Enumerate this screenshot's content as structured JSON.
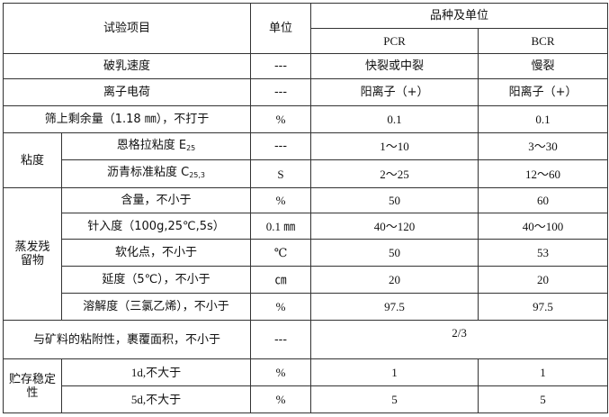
{
  "header": {
    "item": "试验项目",
    "unit": "单位",
    "variety": "品种及单位",
    "pcr": "PCR",
    "bcr": "BCR"
  },
  "rows": [
    {
      "item": "破乳速度",
      "unit": "---",
      "pcr": "快裂或中裂",
      "bcr": "慢裂"
    },
    {
      "item": "离子电荷",
      "unit": "---",
      "pcr": "阳离子（+）",
      "bcr": "阳离子（+）"
    },
    {
      "item": "筛上剩余量（1.18 ㎜），不打于",
      "unit": "%",
      "pcr": "0.1",
      "bcr": "0.1"
    }
  ],
  "viscosity": {
    "group": "粘度",
    "rows": [
      {
        "item": "恩格拉粘度 E",
        "sub": "25",
        "unit": "---",
        "pcr": "1～10",
        "bcr": "3～30"
      },
      {
        "item": "沥青标准粘度 C",
        "sub": "25,3",
        "unit": "S",
        "pcr": "2～25",
        "bcr": "12～60"
      }
    ]
  },
  "residue": {
    "group": "蒸发残留物",
    "rows": [
      {
        "item": "含量，不小于",
        "unit": "%",
        "pcr": "50",
        "bcr": "60"
      },
      {
        "item": "针入度（100g,25℃,5s）",
        "unit": "0.1 ㎜",
        "pcr": "40～120",
        "bcr": "40～100"
      },
      {
        "item": "软化点，不小于",
        "unit": "℃",
        "pcr": "50",
        "bcr": "53"
      },
      {
        "item": "延度（5℃），不小于",
        "unit": "㎝",
        "pcr": "20",
        "bcr": "20"
      },
      {
        "item": "溶解度（三氯乙烯），不小于",
        "unit": "%",
        "pcr": "97.5",
        "bcr": "97.5"
      }
    ]
  },
  "adhesion": {
    "item": "与矿料的粘附性，裹覆面积，不小于",
    "unit": "---",
    "value": "2/3"
  },
  "storage": {
    "group": "贮存稳定性",
    "rows": [
      {
        "item": "1d,不大于",
        "unit": "%",
        "pcr": "1",
        "bcr": "1"
      },
      {
        "item": "5d,不大于",
        "unit": "%",
        "pcr": "5",
        "bcr": "5"
      }
    ]
  }
}
